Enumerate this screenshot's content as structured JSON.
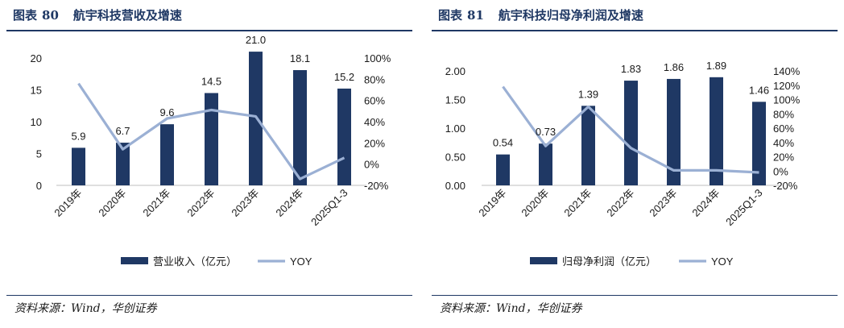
{
  "panels": [
    {
      "title_prefix": "图表",
      "title_number": "80",
      "title_text": "航宇科技营收及增速",
      "source": "资料来源：Wind，华创证券"
    },
    {
      "title_prefix": "图表",
      "title_number": "81",
      "title_text": "航宇科技归母净利润及增速",
      "source": "资料来源：Wind，华创证券"
    }
  ],
  "colors": {
    "bar": "#1f3864",
    "line": "#9bb0d4",
    "title": "#1f3864"
  },
  "chart_data": [
    {
      "type": "bar",
      "categories": [
        "2019年",
        "2020年",
        "2021年",
        "2022年",
        "2023年",
        "2024年",
        "2025Q1-3"
      ],
      "series": [
        {
          "name": "营业收入（亿元）",
          "type": "bar",
          "axis": "left",
          "values": [
            5.9,
            6.7,
            9.6,
            14.5,
            21.0,
            18.1,
            15.2
          ],
          "labels": [
            "5.9",
            "6.7",
            "9.6",
            "14.5",
            "21.0",
            "18.1",
            "15.2"
          ]
        },
        {
          "name": "YOY",
          "type": "line",
          "axis": "right",
          "values": [
            76,
            14,
            43,
            51,
            45,
            -14,
            6
          ]
        }
      ],
      "y_left": {
        "min": 0,
        "max": 20,
        "ticks": [
          "0",
          "5",
          "10",
          "15",
          "20"
        ]
      },
      "y_right": {
        "min": -20,
        "max": 100,
        "ticks": [
          "-20%",
          "0%",
          "20%",
          "40%",
          "60%",
          "80%",
          "100%"
        ]
      },
      "legend": "bottom",
      "grid": false
    },
    {
      "type": "bar",
      "categories": [
        "2019年",
        "2020年",
        "2021年",
        "2022年",
        "2023年",
        "2024年",
        "2025Q1-3"
      ],
      "series": [
        {
          "name": "归母净利润（亿元）",
          "type": "bar",
          "axis": "left",
          "values": [
            0.54,
            0.73,
            1.39,
            1.83,
            1.86,
            1.89,
            1.46
          ],
          "labels": [
            "0.54",
            "0.73",
            "1.39",
            "1.83",
            "1.86",
            "1.89",
            "1.46"
          ]
        },
        {
          "name": "YOY",
          "type": "line",
          "axis": "right",
          "values": [
            118,
            35,
            90,
            32,
            1,
            1,
            -2
          ]
        }
      ],
      "y_left": {
        "min": 0,
        "max": 2,
        "ticks": [
          "0.00",
          "0.50",
          "1.00",
          "1.50",
          "2.00"
        ]
      },
      "y_right": {
        "min": -20,
        "max": 140,
        "ticks": [
          "-20%",
          "0%",
          "20%",
          "40%",
          "60%",
          "80%",
          "100%",
          "120%",
          "140%"
        ]
      },
      "legend": "bottom",
      "grid": false
    }
  ]
}
